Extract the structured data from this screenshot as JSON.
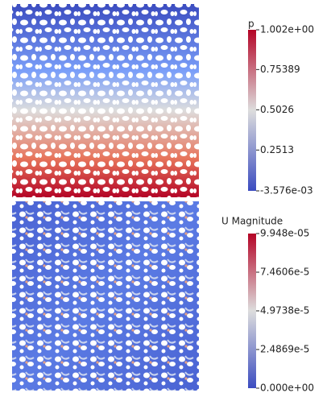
{
  "panels": [
    {
      "colorbar": {
        "title": "p",
        "ticks": [
          {
            "value": 1.002,
            "label": "1.002e+00"
          },
          {
            "value": 0.75389,
            "label": "0.75389"
          },
          {
            "value": 0.5026,
            "label": "0.5026"
          },
          {
            "value": 0.2513,
            "label": "0.2513"
          },
          {
            "value": -0.003576,
            "label": "-3.576e-03"
          }
        ]
      }
    },
    {
      "colorbar": {
        "title": "U Magnitude",
        "ticks": [
          {
            "value": 9.948e-05,
            "label": "9.948e-05"
          },
          {
            "value": 7.4606e-05,
            "label": "7.4606e-5"
          },
          {
            "value": 4.9738e-05,
            "label": "4.9738e-5"
          },
          {
            "value": 2.4869e-05,
            "label": "2.4869e-5"
          },
          {
            "value": 0,
            "label": "0.000e+00"
          }
        ]
      }
    }
  ]
}
